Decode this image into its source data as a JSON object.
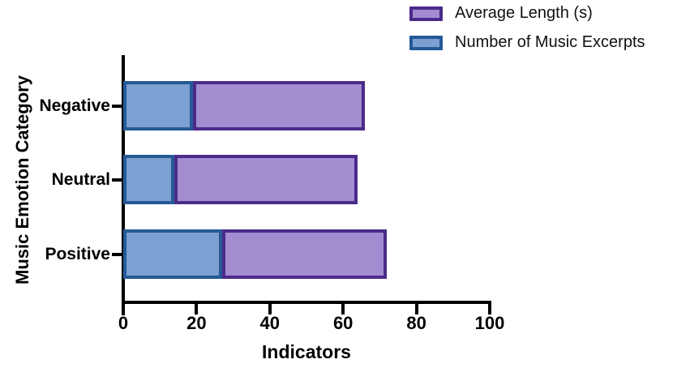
{
  "figure": {
    "background": "#ffffff",
    "text_color": "#000000",
    "axis_color": "#000000"
  },
  "legend": {
    "items": [
      {
        "name": "average-length",
        "label": "Average Length (s)",
        "fill": "#a28dd0",
        "border": "#4b2b8a"
      },
      {
        "name": "music-excerpts",
        "label": "Number of Music Excerpts",
        "fill": "#7da0d2",
        "border": "#255a96"
      }
    ]
  },
  "chart_data": {
    "type": "bar",
    "orientation": "horizontal",
    "stacked": true,
    "title": "",
    "xlabel": "Indicators",
    "ylabel": "Music Emotion Category",
    "categories": [
      "Negative",
      "Neutral",
      "Positive"
    ],
    "series": [
      {
        "name": "Number of Music Excerpts",
        "values": [
          19,
          14,
          27
        ],
        "fill": "#7da0d2",
        "border": "#255a96"
      },
      {
        "name": "Average Length (s)",
        "values": [
          47,
          50,
          45
        ],
        "fill": "#a28dd0",
        "border": "#4b2b8a"
      }
    ],
    "totals": [
      66,
      64,
      72
    ],
    "xlim": [
      0,
      100
    ],
    "xticks": [
      0,
      20,
      40,
      60,
      80,
      100
    ],
    "grid": false,
    "legend_position": "top-right"
  }
}
